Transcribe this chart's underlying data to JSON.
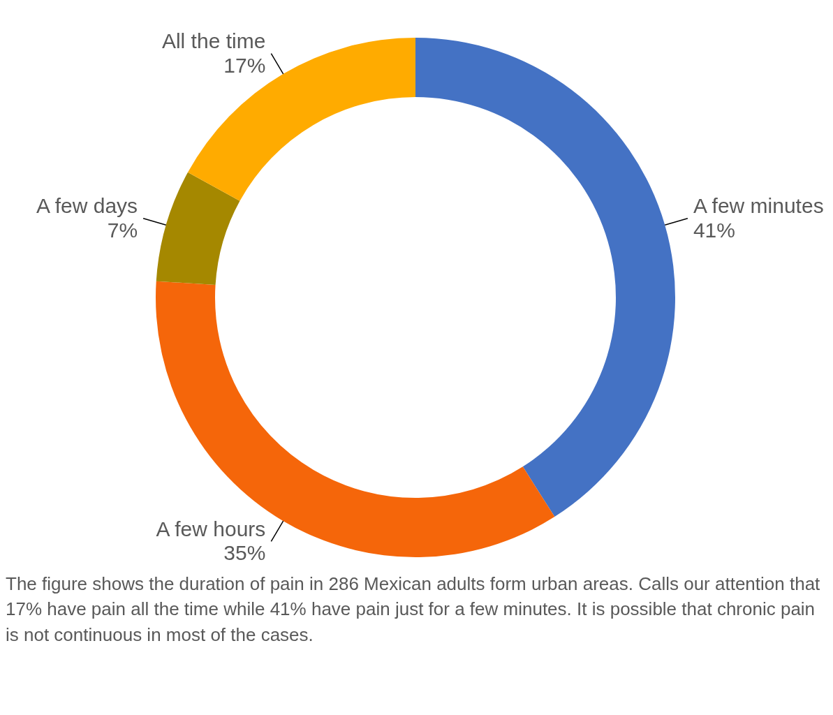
{
  "chart_data": {
    "type": "donut",
    "categories": [
      "A few minutes",
      "A few hours",
      "A few days",
      "All the time"
    ],
    "values": [
      41,
      35,
      7,
      17
    ],
    "value_labels": [
      "41%",
      "35%",
      "7%",
      "17%"
    ],
    "colors": [
      "#4472c4",
      "#f5660a",
      "#a58800",
      "#ffab00"
    ],
    "annotations": [
      "The figure shows the duration of pain in 286 Mexican adults form urban areas. Calls our attention that 17% have pain all the time while 41% have pain just for a few minutes. It is possible that chronic pain is not continuous in most of the cases."
    ]
  }
}
